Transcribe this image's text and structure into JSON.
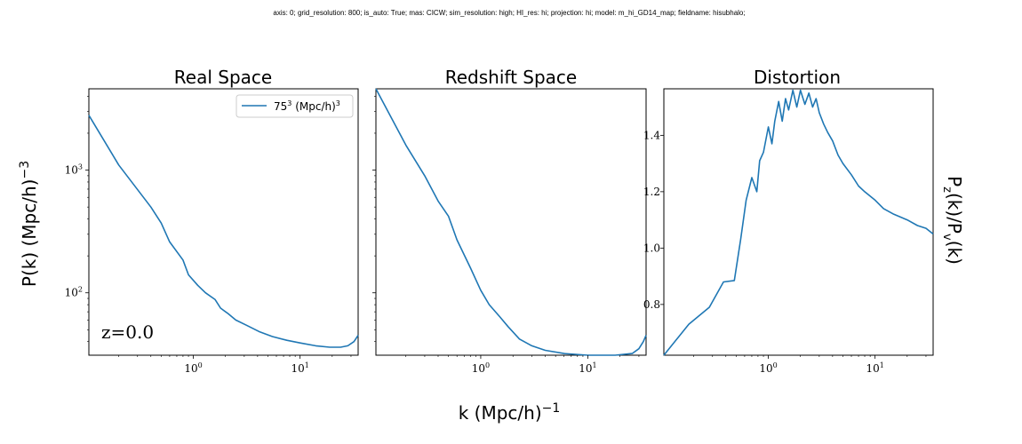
{
  "header": {
    "text": "axis: 0; grid_resolution: 800; is_auto: True; mas: CICW; sim_resolution: high; HI_res: hi; projection: hi; model: m_hi_GD14_map; fieldname: hisubhalo;"
  },
  "figure": {
    "xlabel_main": "k (Mpc/h)",
    "xlabel_exp": "−1",
    "ylabel_left_main": "P(k) (Mpc/h)",
    "ylabel_left_exp": "−3",
    "ylabel_right_a": "P",
    "ylabel_right_sub1": "z",
    "ylabel_right_b": "(k)/P",
    "ylabel_right_sub2": "v",
    "ylabel_right_c": "(k)",
    "annotation": "z=0.0",
    "legend_base": "75",
    "legend_exp": "3",
    "legend_unit": " (Mpc/h)",
    "legend_unit_exp": "3",
    "colors": {
      "line": "#1f77b4",
      "axes": "#000000",
      "background": "#ffffff",
      "legend_border": "#cccccc"
    }
  },
  "chart_data": [
    {
      "type": "line",
      "title": "Real Space",
      "xscale": "log",
      "yscale": "log",
      "xlim": [
        0.105,
        35
      ],
      "ylim": [
        31,
        4600
      ],
      "xticks": [
        {
          "base": "10",
          "exp": "0",
          "value": 1
        },
        {
          "base": "10",
          "exp": "1",
          "value": 10
        }
      ],
      "yticks": [
        {
          "base": "10",
          "exp": "2",
          "value": 100
        },
        {
          "base": "10",
          "exp": "3",
          "value": 1000
        }
      ],
      "legend": "upper right",
      "series": [
        {
          "name": "75³ (Mpc/h)³",
          "x": [
            0.105,
            0.2,
            0.4,
            0.5,
            0.6,
            0.8,
            0.9,
            1.1,
            1.3,
            1.6,
            1.8,
            2.1,
            2.5,
            3.2,
            4.2,
            5.5,
            7.5,
            10,
            14,
            19,
            24,
            28,
            32,
            35
          ],
          "y": [
            2800,
            1100,
            500,
            370,
            260,
            185,
            140,
            115,
            100,
            88,
            75,
            68,
            60,
            54,
            48,
            44,
            41,
            39,
            37,
            36,
            36,
            37,
            40,
            45
          ]
        }
      ]
    },
    {
      "type": "line",
      "title": "Redshift Space",
      "xscale": "log",
      "yscale": "log",
      "xlim": [
        0.105,
        35
      ],
      "ylim": [
        31,
        4600
      ],
      "series": [
        {
          "x": [
            0.105,
            0.2,
            0.3,
            0.4,
            0.5,
            0.6,
            0.8,
            1.0,
            1.2,
            1.5,
            1.8,
            2.3,
            3,
            4,
            6,
            10,
            18,
            26,
            30,
            33,
            35
          ],
          "y": [
            4600,
            1600,
            900,
            560,
            420,
            270,
            160,
            105,
            80,
            64,
            53,
            42,
            37,
            34,
            32,
            31,
            31,
            32,
            35,
            40,
            45
          ]
        }
      ]
    },
    {
      "type": "line",
      "title": "Distortion",
      "xscale": "log",
      "yscale": "linear",
      "xlim": [
        0.105,
        35
      ],
      "ylim": [
        0.62,
        1.565
      ],
      "yticks": [
        0.8,
        1.0,
        1.2,
        1.4
      ],
      "ytick_labels": [
        "0.8",
        "1.0",
        "1.2",
        "1.4"
      ],
      "ylabel_position": "right",
      "series": [
        {
          "x": [
            0.105,
            0.18,
            0.28,
            0.38,
            0.48,
            0.55,
            0.62,
            0.7,
            0.78,
            0.83,
            0.9,
            1.0,
            1.08,
            1.15,
            1.25,
            1.35,
            1.45,
            1.55,
            1.7,
            1.85,
            2.0,
            2.2,
            2.4,
            2.6,
            2.8,
            3.0,
            3.3,
            3.6,
            4.0,
            4.5,
            5.0,
            6.0,
            7.0,
            8.0,
            10,
            12,
            15,
            20,
            25,
            30,
            35
          ],
          "y": [
            0.62,
            0.73,
            0.79,
            0.88,
            0.885,
            1.03,
            1.17,
            1.25,
            1.2,
            1.31,
            1.34,
            1.43,
            1.37,
            1.45,
            1.52,
            1.45,
            1.53,
            1.49,
            1.56,
            1.5,
            1.56,
            1.51,
            1.55,
            1.5,
            1.53,
            1.48,
            1.44,
            1.41,
            1.38,
            1.33,
            1.3,
            1.26,
            1.22,
            1.2,
            1.17,
            1.14,
            1.12,
            1.1,
            1.08,
            1.07,
            1.05
          ]
        }
      ]
    }
  ]
}
